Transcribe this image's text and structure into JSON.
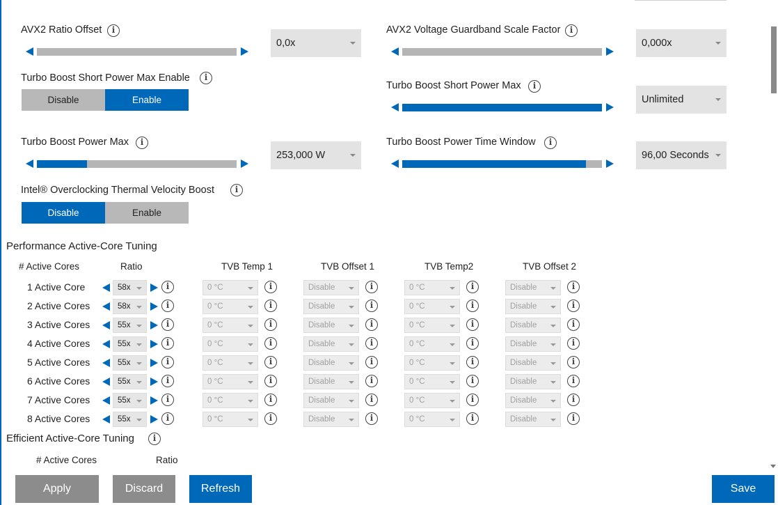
{
  "settings": {
    "avx2_ratio_offset": {
      "label": "AVX2 Ratio Offset",
      "value": "0,0x",
      "level": 1.0,
      "color": "gray"
    },
    "avx2_voltage_guardband": {
      "label": "AVX2 Voltage Guardband Scale Factor",
      "value": "0,000x",
      "level": 1.0,
      "color": "gray"
    },
    "turbo_short_enable": {
      "label": "Turbo Boost Short Power Max Enable",
      "off": "Disable",
      "on": "Enable",
      "selected": "Enable"
    },
    "turbo_short_max": {
      "label": "Turbo Boost Short Power Max",
      "value": "Unlimited",
      "level": 1.0
    },
    "turbo_power_max": {
      "label": "Turbo Boost Power Max",
      "value": "253,000 W",
      "level": 0.25
    },
    "turbo_time_window": {
      "label": "Turbo Boost Power Time Window",
      "value": "96,00 Seconds",
      "level": 0.92
    },
    "tvb": {
      "label": "Intel® Overclocking Thermal Velocity Boost",
      "off": "Disable",
      "on": "Enable",
      "selected": "Disable"
    }
  },
  "perf_section": {
    "title": "Performance Active-Core Tuning",
    "headers": {
      "cores": "# Active Cores",
      "ratio": "Ratio",
      "tvb_temp1": "TVB Temp 1",
      "tvb_offset1": "TVB Offset 1",
      "tvb_temp2": "TVB Temp2",
      "tvb_offset2": "TVB Offset 2"
    },
    "rows": [
      {
        "label": "1 Active Core",
        "ratio": "58x",
        "temp1": "0 °C",
        "offset1": "Disable",
        "temp2": "0 °C",
        "offset2": "Disable"
      },
      {
        "label": "2 Active Cores",
        "ratio": "58x",
        "temp1": "0 °C",
        "offset1": "Disable",
        "temp2": "0 °C",
        "offset2": "Disable"
      },
      {
        "label": "3 Active Cores",
        "ratio": "55x",
        "temp1": "0 °C",
        "offset1": "Disable",
        "temp2": "0 °C",
        "offset2": "Disable"
      },
      {
        "label": "4 Active Cores",
        "ratio": "55x",
        "temp1": "0 °C",
        "offset1": "Disable",
        "temp2": "0 °C",
        "offset2": "Disable"
      },
      {
        "label": "5 Active Cores",
        "ratio": "55x",
        "temp1": "0 °C",
        "offset1": "Disable",
        "temp2": "0 °C",
        "offset2": "Disable"
      },
      {
        "label": "6 Active Cores",
        "ratio": "55x",
        "temp1": "0 °C",
        "offset1": "Disable",
        "temp2": "0 °C",
        "offset2": "Disable"
      },
      {
        "label": "7 Active Cores",
        "ratio": "55x",
        "temp1": "0 °C",
        "offset1": "Disable",
        "temp2": "0 °C",
        "offset2": "Disable"
      },
      {
        "label": "8 Active Cores",
        "ratio": "55x",
        "temp1": "0 °C",
        "offset1": "Disable",
        "temp2": "0 °C",
        "offset2": "Disable"
      }
    ]
  },
  "eff_section": {
    "title": "Efficient Active-Core Tuning",
    "headers": {
      "cores": "# Active Cores",
      "ratio": "Ratio"
    }
  },
  "buttons": {
    "apply": "Apply",
    "discard": "Discard",
    "refresh": "Refresh",
    "save": "Save"
  },
  "icons": {
    "info": "info-icon",
    "left": "arrow-left-icon",
    "right": "arrow-right-icon",
    "caret": "chevron-down-icon"
  },
  "colors": {
    "accent": "#0068b8",
    "track": "#b5b5b5",
    "button_gray": "#8c8c8c",
    "dropdown": "#e3e3e3"
  }
}
